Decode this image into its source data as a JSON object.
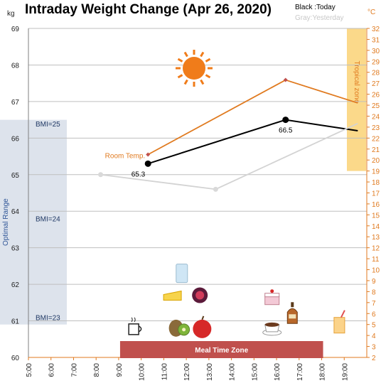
{
  "chart_data": {
    "type": "line",
    "title": "Intraday Weight Change (Apr 26, 2020)",
    "legend": {
      "today": "Black :Today",
      "yesterday": "Gray:Yesterday"
    },
    "left_axis": {
      "unit": "kg",
      "ylim": [
        60,
        69
      ],
      "ticks": [
        "60",
        "61",
        "62",
        "63",
        "64",
        "65",
        "66",
        "67",
        "68",
        "69"
      ]
    },
    "right_axis": {
      "unit": "°C",
      "ylim": [
        2,
        32
      ],
      "ticks": [
        "2",
        "3",
        "4",
        "5",
        "6",
        "7",
        "8",
        "9",
        "10",
        "11",
        "12",
        "13",
        "14",
        "15",
        "16",
        "17",
        "18",
        "19",
        "20",
        "21",
        "22",
        "23",
        "24",
        "25",
        "26",
        "27",
        "28",
        "29",
        "30",
        "31",
        "32"
      ]
    },
    "x_axis": {
      "ticks": [
        "5:00",
        "6:00",
        "7:00",
        "8:00",
        "9:00",
        "10:00",
        "11:00",
        "12:00",
        "13:00",
        "14:00",
        "15:00",
        "16:00",
        "17:00",
        "18:00",
        "19:00"
      ]
    },
    "series": [
      {
        "name": "Today",
        "color": "#000000",
        "points": [
          {
            "x": 10.3,
            "y": 65.3
          },
          {
            "x": 16.4,
            "y": 66.5
          },
          {
            "x": 19.6,
            "y": 66.2
          }
        ]
      },
      {
        "name": "Yesterday",
        "color": "#d3d3d3",
        "points": [
          {
            "x": 8.2,
            "y": 65.0
          },
          {
            "x": 13.3,
            "y": 64.6
          },
          {
            "x": 19.6,
            "y": 66.4
          }
        ]
      },
      {
        "name": "Room Temp.",
        "axis": "right",
        "color": "#e07a1f",
        "points": [
          {
            "x": 10.3,
            "y": 20.5
          },
          {
            "x": 16.4,
            "y": 27.3
          },
          {
            "x": 19.6,
            "y": 25.2
          }
        ]
      }
    ],
    "data_labels": [
      {
        "text": "65.3",
        "x": 10.3,
        "y": 65.3,
        "anchor": "end"
      },
      {
        "text": "66.5",
        "x": 16.4,
        "y": 66.5,
        "anchor": "middle"
      }
    ],
    "room_temp_label": "Room Temp.",
    "optimal_range": {
      "label": "Optimal Range",
      "from": 60.9,
      "to": 66.5
    },
    "bmi_labels": [
      {
        "text": "BMI=25",
        "y": 66.4
      },
      {
        "text": "BMI=24",
        "y": 63.8
      },
      {
        "text": "BMI=23",
        "y": 61.1
      }
    ],
    "tropical_zone": {
      "label": "Tropical zone",
      "from_temp": 19,
      "to_temp": 32
    },
    "meal_zone": {
      "label": "Meal Time Zone",
      "from_x": 9.0,
      "to_x": 18.0,
      "color": "#c0504d"
    },
    "colors": {
      "accent": "#e07a1f",
      "optimal": "#dde3ec",
      "tropical": "#fbd98a",
      "grid": "#bfbfbf"
    },
    "icons": [
      {
        "name": "coffee-cup-icon",
        "x": 9.7,
        "y": 60.8
      },
      {
        "name": "water-glass-icon",
        "x": 11.8,
        "y": 62.3
      },
      {
        "name": "cheese-icon",
        "x": 11.4,
        "y": 61.7
      },
      {
        "name": "fig-icon",
        "x": 12.6,
        "y": 61.7
      },
      {
        "name": "kiwi-icon",
        "x": 11.7,
        "y": 60.8
      },
      {
        "name": "apple-icon",
        "x": 12.7,
        "y": 60.8
      },
      {
        "name": "cake-icon",
        "x": 15.8,
        "y": 61.6
      },
      {
        "name": "liquor-bottle-icon",
        "x": 16.7,
        "y": 61.2
      },
      {
        "name": "hot-chocolate-icon",
        "x": 15.8,
        "y": 60.8
      },
      {
        "name": "juice-glass-icon",
        "x": 18.8,
        "y": 60.9
      }
    ]
  }
}
